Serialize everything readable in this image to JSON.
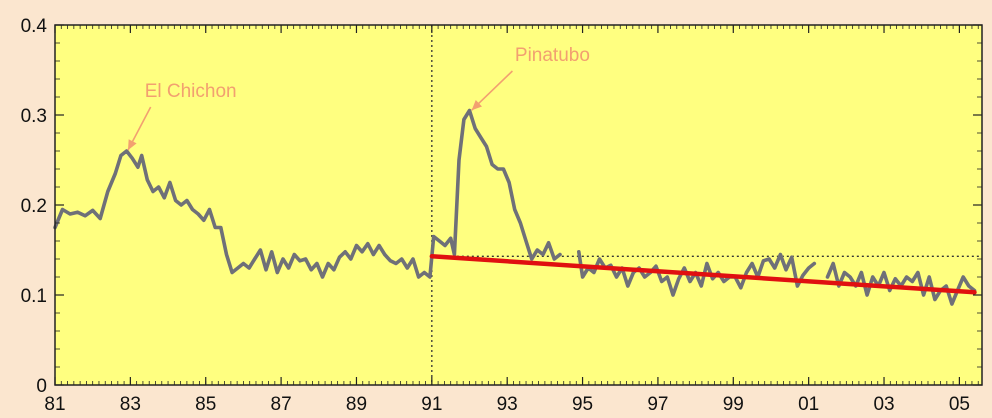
{
  "chart_data": {
    "type": "line",
    "title": "",
    "xlabel": "",
    "ylabel": "",
    "xlim": [
      1981,
      2005.6
    ],
    "ylim": [
      0,
      0.4
    ],
    "x_ticks": [
      {
        "value": 1981,
        "label": "81"
      },
      {
        "value": 1983,
        "label": "83"
      },
      {
        "value": 1985,
        "label": "85"
      },
      {
        "value": 1987,
        "label": "87"
      },
      {
        "value": 1989,
        "label": "89"
      },
      {
        "value": 1991,
        "label": "91"
      },
      {
        "value": 1993,
        "label": "93"
      },
      {
        "value": 1995,
        "label": "95"
      },
      {
        "value": 1997,
        "label": "97"
      },
      {
        "value": 1999,
        "label": "99"
      },
      {
        "value": 2001,
        "label": "01"
      },
      {
        "value": 2003,
        "label": "03"
      },
      {
        "value": 2005,
        "label": "05"
      }
    ],
    "y_ticks": [
      {
        "value": 0,
        "label": "0"
      },
      {
        "value": 0.1,
        "label": "0.1"
      },
      {
        "value": 0.2,
        "label": "0.2"
      },
      {
        "value": 0.3,
        "label": "0.3"
      },
      {
        "value": 0.4,
        "label": "0.4"
      }
    ],
    "grid": false,
    "colors": {
      "background": "#fbe6cf",
      "plot_area": "#ffff80",
      "series": "#6f7078",
      "trend": "#e01010",
      "annotation": "#f2a070"
    },
    "series": [
      {
        "values": [
          [
            1981.0,
            0.175
          ],
          [
            1981.2,
            0.195
          ],
          [
            1981.4,
            0.19
          ],
          [
            1981.6,
            0.192
          ],
          [
            1981.8,
            0.188
          ],
          [
            1982.0,
            0.194
          ],
          [
            1982.2,
            0.185
          ],
          [
            1982.4,
            0.215
          ],
          [
            1982.6,
            0.235
          ],
          [
            1982.75,
            0.255
          ],
          [
            1982.9,
            0.26
          ],
          [
            1983.05,
            0.252
          ],
          [
            1983.2,
            0.242
          ],
          [
            1983.3,
            0.255
          ],
          [
            1983.45,
            0.228
          ],
          [
            1983.6,
            0.215
          ],
          [
            1983.75,
            0.22
          ],
          [
            1983.9,
            0.208
          ],
          [
            1984.05,
            0.225
          ],
          [
            1984.2,
            0.205
          ],
          [
            1984.35,
            0.2
          ],
          [
            1984.5,
            0.205
          ],
          [
            1984.65,
            0.195
          ],
          [
            1984.8,
            0.19
          ],
          [
            1984.95,
            0.183
          ],
          [
            1985.1,
            0.195
          ],
          [
            1985.25,
            0.175
          ],
          [
            1985.4,
            0.175
          ],
          [
            1985.55,
            0.145
          ],
          [
            1985.7,
            0.125
          ],
          [
            1985.85,
            0.13
          ],
          [
            1986.0,
            0.135
          ],
          [
            1986.15,
            0.13
          ],
          [
            1986.3,
            0.14
          ],
          [
            1986.45,
            0.15
          ],
          [
            1986.6,
            0.128
          ],
          [
            1986.75,
            0.148
          ],
          [
            1986.9,
            0.125
          ],
          [
            1987.05,
            0.14
          ],
          [
            1987.2,
            0.13
          ],
          [
            1987.35,
            0.145
          ],
          [
            1987.5,
            0.138
          ],
          [
            1987.65,
            0.14
          ],
          [
            1987.8,
            0.128
          ],
          [
            1987.95,
            0.135
          ],
          [
            1988.1,
            0.12
          ],
          [
            1988.25,
            0.135
          ],
          [
            1988.4,
            0.128
          ],
          [
            1988.55,
            0.142
          ],
          [
            1988.7,
            0.148
          ],
          [
            1988.85,
            0.14
          ],
          [
            1989.0,
            0.155
          ],
          [
            1989.15,
            0.148
          ],
          [
            1989.3,
            0.157
          ],
          [
            1989.45,
            0.145
          ],
          [
            1989.6,
            0.155
          ],
          [
            1989.75,
            0.145
          ],
          [
            1989.9,
            0.138
          ],
          [
            1990.05,
            0.135
          ],
          [
            1990.2,
            0.14
          ],
          [
            1990.35,
            0.13
          ],
          [
            1990.5,
            0.14
          ],
          [
            1990.65,
            0.12
          ],
          [
            1990.8,
            0.125
          ],
          [
            1990.95,
            0.12
          ],
          [
            1991.05,
            0.165
          ],
          [
            1991.2,
            0.16
          ],
          [
            1991.35,
            0.155
          ],
          [
            1991.5,
            0.163
          ],
          [
            1991.6,
            0.145
          ],
          [
            1991.72,
            0.25
          ],
          [
            1991.85,
            0.295
          ],
          [
            1992.0,
            0.305
          ],
          [
            1992.15,
            0.285
          ],
          [
            1992.3,
            0.275
          ],
          [
            1992.45,
            0.265
          ],
          [
            1992.6,
            0.245
          ],
          [
            1992.75,
            0.24
          ],
          [
            1992.9,
            0.24
          ],
          [
            1993.05,
            0.225
          ],
          [
            1993.2,
            0.195
          ],
          [
            1993.35,
            0.18
          ],
          [
            1993.5,
            0.16
          ],
          [
            1993.65,
            0.14
          ],
          [
            1993.8,
            0.15
          ],
          [
            1993.95,
            0.145
          ],
          [
            1994.1,
            0.158
          ],
          [
            1994.25,
            0.14
          ],
          [
            1994.4,
            0.145
          ]
        ]
      },
      {
        "values": [
          [
            1994.9,
            0.148
          ],
          [
            1995.0,
            0.12
          ],
          [
            1995.15,
            0.13
          ],
          [
            1995.3,
            0.125
          ],
          [
            1995.45,
            0.14
          ],
          [
            1995.6,
            0.13
          ],
          [
            1995.75,
            0.133
          ],
          [
            1995.9,
            0.12
          ],
          [
            1996.05,
            0.13
          ],
          [
            1996.2,
            0.11
          ],
          [
            1996.35,
            0.125
          ],
          [
            1996.5,
            0.13
          ],
          [
            1996.65,
            0.12
          ],
          [
            1996.8,
            0.125
          ],
          [
            1996.95,
            0.132
          ],
          [
            1997.1,
            0.115
          ],
          [
            1997.25,
            0.12
          ],
          [
            1997.4,
            0.1
          ],
          [
            1997.55,
            0.118
          ],
          [
            1997.7,
            0.13
          ],
          [
            1997.85,
            0.115
          ],
          [
            1998.0,
            0.125
          ],
          [
            1998.15,
            0.11
          ],
          [
            1998.3,
            0.135
          ],
          [
            1998.45,
            0.118
          ],
          [
            1998.6,
            0.125
          ],
          [
            1998.75,
            0.115
          ],
          [
            1998.9,
            0.12
          ],
          [
            1999.05,
            0.12
          ],
          [
            1999.2,
            0.108
          ],
          [
            1999.35,
            0.125
          ],
          [
            1999.5,
            0.135
          ],
          [
            1999.65,
            0.12
          ],
          [
            1999.8,
            0.138
          ],
          [
            1999.95,
            0.14
          ],
          [
            2000.1,
            0.13
          ],
          [
            2000.25,
            0.145
          ],
          [
            2000.4,
            0.128
          ],
          [
            2000.55,
            0.142
          ],
          [
            2000.7,
            0.11
          ],
          [
            2000.85,
            0.122
          ],
          [
            2001.0,
            0.13
          ],
          [
            2001.15,
            0.135
          ]
        ]
      },
      {
        "values": [
          [
            2001.5,
            0.12
          ],
          [
            2001.65,
            0.135
          ],
          [
            2001.8,
            0.11
          ],
          [
            2001.95,
            0.125
          ],
          [
            2002.1,
            0.12
          ],
          [
            2002.25,
            0.11
          ],
          [
            2002.4,
            0.125
          ],
          [
            2002.55,
            0.1
          ],
          [
            2002.7,
            0.12
          ],
          [
            2002.85,
            0.11
          ],
          [
            2003.0,
            0.125
          ],
          [
            2003.15,
            0.105
          ],
          [
            2003.3,
            0.118
          ],
          [
            2003.45,
            0.11
          ],
          [
            2003.6,
            0.12
          ],
          [
            2003.75,
            0.115
          ],
          [
            2003.9,
            0.125
          ],
          [
            2004.05,
            0.1
          ],
          [
            2004.2,
            0.12
          ],
          [
            2004.35,
            0.095
          ],
          [
            2004.5,
            0.105
          ],
          [
            2004.65,
            0.11
          ],
          [
            2004.8,
            0.09
          ],
          [
            2004.95,
            0.105
          ],
          [
            2005.1,
            0.12
          ],
          [
            2005.25,
            0.11
          ],
          [
            2005.4,
            0.105
          ]
        ]
      }
    ],
    "trend_line": {
      "x": [
        1991.0,
        2005.4
      ],
      "y": [
        0.143,
        0.103
      ]
    },
    "reference_lines": {
      "vertical_x": 1991.0,
      "horizontal": {
        "y": 0.143,
        "x_from": 1991.0,
        "x_to": 2005.6
      }
    },
    "annotations": [
      {
        "text": "El Chichon",
        "point": [
          1982.9,
          0.258
        ],
        "text_pos": [
          1984.6,
          0.32
        ]
      },
      {
        "text": "Pinatubo",
        "point": [
          1992.0,
          0.303
        ],
        "text_pos": [
          1994.2,
          0.36
        ]
      }
    ]
  }
}
